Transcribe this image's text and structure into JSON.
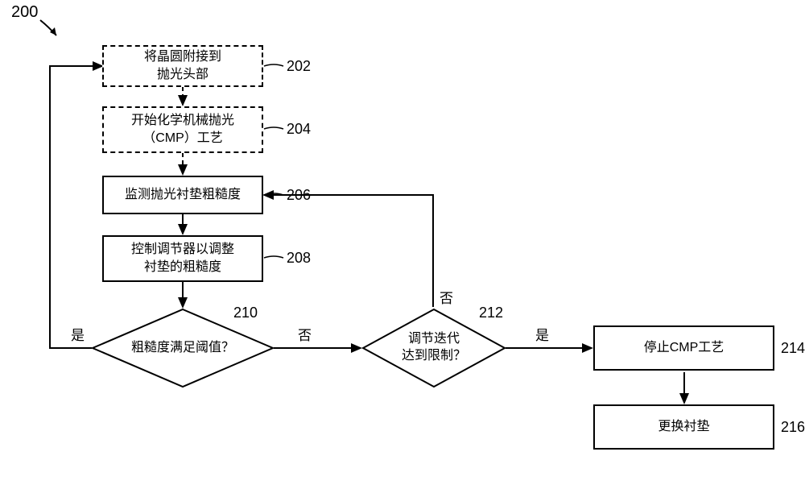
{
  "figure_label": "200",
  "nodes": {
    "n202": {
      "text": "将晶圆附接到\n抛光头部",
      "ref": "202",
      "style": "dashed"
    },
    "n204": {
      "text": "开始化学机械抛光\n（CMP）工艺",
      "ref": "204",
      "style": "dashed"
    },
    "n206": {
      "text": "监测抛光衬垫粗糙度",
      "ref": "206",
      "style": "solid"
    },
    "n208": {
      "text": "控制调节器以调整\n衬垫的粗糙度",
      "ref": "208",
      "style": "solid"
    },
    "n210": {
      "text": "粗糙度满足阈值？",
      "ref": "210",
      "style": "diamond"
    },
    "n212": {
      "text": "调节迭代\n达到限制？",
      "ref": "212",
      "style": "diamond"
    },
    "n214": {
      "text": "停止CMP工艺",
      "ref": "214",
      "style": "solid"
    },
    "n216": {
      "text": "更换衬垫",
      "ref": "216",
      "style": "solid"
    }
  },
  "edge_labels": {
    "l_yes_210": "是",
    "l_no_210": "否",
    "l_no_212": "否",
    "l_yes_212": "是"
  },
  "style": {
    "stroke": "#000000",
    "stroke_width": 2,
    "font_size": 16,
    "background": "#ffffff"
  }
}
